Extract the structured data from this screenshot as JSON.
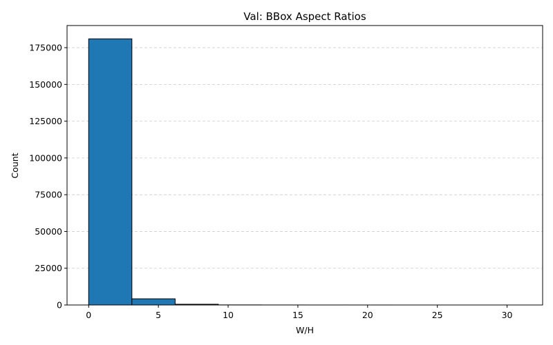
{
  "chart_data": {
    "type": "bar",
    "title": "Val: BBox Aspect Ratios",
    "xlabel": "W/H",
    "ylabel": "Count",
    "bins": [
      {
        "x0": 0.0,
        "x1": 3.1,
        "value": 181000
      },
      {
        "x0": 3.1,
        "x1": 6.2,
        "value": 4200
      },
      {
        "x0": 6.2,
        "x1": 9.3,
        "value": 500
      },
      {
        "x0": 9.3,
        "x1": 12.4,
        "value": 60
      },
      {
        "x0": 12.4,
        "x1": 15.5,
        "value": 20
      },
      {
        "x0": 15.5,
        "x1": 18.6,
        "value": 10
      },
      {
        "x0": 18.6,
        "x1": 21.7,
        "value": 5
      },
      {
        "x0": 21.7,
        "x1": 24.8,
        "value": 3
      },
      {
        "x0": 24.8,
        "x1": 27.9,
        "value": 2
      },
      {
        "x0": 27.9,
        "x1": 31.0,
        "value": 1
      }
    ],
    "xlim": [
      -1.55,
      32.55
    ],
    "ylim": [
      0,
      190050
    ],
    "xticks": [
      0,
      5,
      10,
      15,
      20,
      25,
      30
    ],
    "xtick_labels": [
      "0",
      "5",
      "10",
      "15",
      "20",
      "25",
      "30"
    ],
    "yticks": [
      0,
      25000,
      50000,
      75000,
      100000,
      125000,
      150000,
      175000
    ],
    "ytick_labels": [
      "0",
      "25000",
      "50000",
      "75000",
      "100000",
      "125000",
      "150000",
      "175000"
    ],
    "grid": {
      "axis": "y",
      "style": "dashed"
    },
    "colors": {
      "bar": "#1f77b4",
      "edge": "#000000",
      "grid": "#cccccc"
    }
  }
}
